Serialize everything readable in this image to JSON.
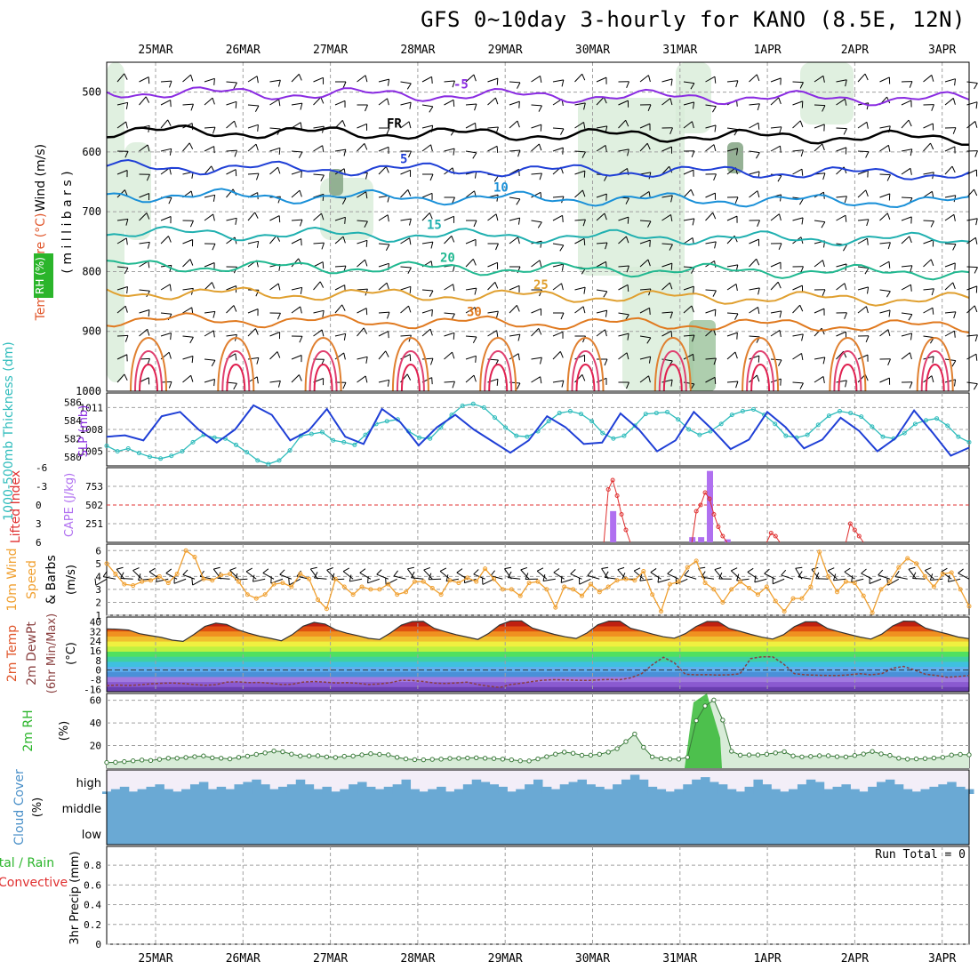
{
  "title": "GFS 0~10day 3-hourly for KANO (8.5E, 12N)",
  "dates": [
    "25MAR",
    "26MAR",
    "27MAR",
    "28MAR",
    "29MAR",
    "30MAR",
    "31MAR",
    "1APR",
    "2APR",
    "3APR"
  ],
  "colors": {
    "grid": "#a0a0a0",
    "purple": "#8a2be2",
    "blue": "#1f3fd6",
    "cyan": "#2fbcbc",
    "orange": "#f0a030",
    "green": "#2bb52b",
    "red": "#e03030",
    "cloud": "#6aa9d4",
    "rh_fill": "#d8ecd8"
  },
  "panels": {
    "upper": {
      "ylabel_parts": [
        "RH (%)",
        "Temperature (°C)",
        "Wind (m/s)"
      ],
      "ylabel2": "( m i l l i b a r s )",
      "ticks": [
        "500",
        "600",
        "700",
        "800",
        "900",
        "1000"
      ],
      "ylim": [
        1000,
        450
      ],
      "isotherms": [
        {
          "label": "-5",
          "color": "#8a2be2",
          "p": 500
        },
        {
          "label": "FR",
          "color": "#000000",
          "p": 565
        },
        {
          "label": "5",
          "color": "#1f3fd6",
          "p": 625
        },
        {
          "label": "10",
          "color": "#1a90d8",
          "p": 672
        },
        {
          "label": "15",
          "color": "#20b0b0",
          "p": 735
        },
        {
          "label": "20",
          "color": "#20b890",
          "p": 790
        },
        {
          "label": "25",
          "color": "#e0a030",
          "p": 835
        },
        {
          "label": "30",
          "color": "#e07a20",
          "p": 880
        }
      ],
      "contour_labels": [
        "-5",
        "FR",
        "5",
        "10",
        "15",
        "20",
        "25",
        "30",
        "-5",
        "FR",
        "5",
        "10",
        "20",
        "25",
        "1",
        "10",
        "10",
        "50",
        "50",
        "30",
        "1"
      ]
    },
    "thickness": {
      "ylabel": "1000-500mb Thickness (dm)",
      "ylabel2": "SLP (mb)",
      "left_ticks": [
        "586",
        "584",
        "582",
        "580"
      ],
      "right_ticks": [
        "1011",
        "1008",
        "1005"
      ],
      "thickness_dm": [
        581.2,
        580.6,
        580.9,
        580.4,
        580.0,
        579.8,
        580.1,
        580.6,
        581.6,
        582.4,
        582.1,
        582.0,
        581.3,
        580.5,
        579.6,
        579.2,
        579.6,
        580.7,
        582.3,
        582.5,
        582.7,
        581.8,
        581.6,
        581.3,
        582.4,
        583.6,
        583.9,
        584.1,
        582.8,
        582.1,
        582.0,
        583.2,
        584.6,
        585.6,
        585.8,
        585.4,
        584.3,
        583.2,
        582.3,
        582.2,
        582.8,
        583.9,
        584.8,
        585.0,
        584.7,
        583.9,
        582.6,
        582.0,
        582.3,
        583.4,
        584.7,
        584.8,
        584.9,
        584.1,
        583.0,
        582.4,
        582.8,
        583.6,
        584.6,
        585.0,
        585.2,
        584.6,
        583.6,
        582.3,
        582.1,
        582.4,
        583.5,
        584.5,
        585.0,
        584.8,
        584.4,
        583.3,
        582.2,
        582.0,
        582.6,
        583.6,
        584.0,
        584.2,
        583.4,
        582.2,
        581.6
      ],
      "slp_mb": [
        1007.0,
        1007.2,
        1006.5,
        1009.8,
        1010.4,
        1008.0,
        1006.2,
        1008.0,
        1011.3,
        1010.0,
        1006.5,
        1007.8,
        1010.8,
        1007.0,
        1006.0,
        1010.8,
        1009.0,
        1005.8,
        1008.3,
        1010.0,
        1008.0,
        1006.4,
        1004.8,
        1006.5,
        1009.8,
        1008.3,
        1006.0,
        1006.2,
        1010.2,
        1008.0,
        1005.0,
        1006.5,
        1010.4,
        1008.0,
        1005.3,
        1006.6,
        1010.4,
        1008.3,
        1005.4,
        1006.6,
        1009.6,
        1007.8,
        1005.0,
        1006.8,
        1010.6,
        1007.6,
        1004.4,
        1005.5
      ],
      "ylim_left": [
        579,
        587
      ],
      "ylim_right": [
        1003,
        1013
      ]
    },
    "cape": {
      "ylabel": "Lifted Index",
      "ylabel2": "CAPE (J/kg)",
      "left_ticks": [
        "-6",
        "-3",
        "0",
        "3",
        "6"
      ],
      "right_ticks": [
        "753",
        "502",
        "251"
      ],
      "cape_bars": [
        {
          "t": 57.5,
          "v": 420
        },
        {
          "t": 66.5,
          "v": 70
        },
        {
          "t": 67.5,
          "v": 70
        },
        {
          "t": 68.5,
          "v": 960
        },
        {
          "t": 70.5,
          "v": 40
        }
      ],
      "li_points": [
        {
          "t": 56.5,
          "v": 6
        },
        {
          "t": 57.0,
          "v": -2.5
        },
        {
          "t": 57.5,
          "v": -4.0
        },
        {
          "t": 58.0,
          "v": -1.5
        },
        {
          "t": 58.5,
          "v": 1.5
        },
        {
          "t": 59.0,
          "v": 4.0
        },
        {
          "t": 59.5,
          "v": 6
        },
        {
          "t": 66.5,
          "v": 6
        },
        {
          "t": 67.0,
          "v": 1.0
        },
        {
          "t": 67.5,
          "v": 0.0
        },
        {
          "t": 68.0,
          "v": -2.0
        },
        {
          "t": 68.5,
          "v": -1.0
        },
        {
          "t": 69.0,
          "v": 1.5
        },
        {
          "t": 69.5,
          "v": 3.5
        },
        {
          "t": 70.0,
          "v": 5.0
        },
        {
          "t": 70.5,
          "v": 6
        },
        {
          "t": 75.0,
          "v": 6
        },
        {
          "t": 75.5,
          "v": 4.5
        },
        {
          "t": 76.0,
          "v": 5.0
        },
        {
          "t": 76.5,
          "v": 6
        },
        {
          "t": 84.0,
          "v": 6
        },
        {
          "t": 84.5,
          "v": 3.0
        },
        {
          "t": 85.0,
          "v": 4.0
        },
        {
          "t": 85.5,
          "v": 5.0
        },
        {
          "t": 86.0,
          "v": 6
        }
      ],
      "ylim_li": [
        6,
        -6
      ],
      "ylim_cape": [
        0,
        1004
      ]
    },
    "wind10": {
      "ylabel": "10m Wind",
      "ylabel2": "Speed",
      "ylabel3": "& Barbs",
      "unit": "(m/s)",
      "ticks": [
        "6",
        "5",
        "4",
        "3",
        "2",
        "1"
      ],
      "speed": [
        5.0,
        4.2,
        3.4,
        3.3,
        3.6,
        3.7,
        4.0,
        3.5,
        4.2,
        6.0,
        5.5,
        3.8,
        3.7,
        4.1,
        4.2,
        3.6,
        2.6,
        2.3,
        2.6,
        3.4,
        3.5,
        3.2,
        4.2,
        3.8,
        2.2,
        1.5,
        3.8,
        3.2,
        2.6,
        3.2,
        3.0,
        3.0,
        3.4,
        2.6,
        2.8,
        3.6,
        3.6,
        3.1,
        2.6,
        3.7,
        3.5,
        3.9,
        3.6,
        4.6,
        3.8,
        3.0,
        3.0,
        2.5,
        3.5,
        3.6,
        3.0,
        1.6,
        3.2,
        3.0,
        2.5,
        3.4,
        2.8,
        3.2,
        3.7,
        3.8,
        3.7,
        4.4,
        2.6,
        1.3,
        3.4,
        3.6,
        4.7,
        5.2,
        3.5,
        3.0,
        2.0,
        3.0,
        3.6,
        3.1,
        2.6,
        3.2,
        2.1,
        1.3,
        2.3,
        2.3,
        3.2,
        5.9,
        4.0,
        2.8,
        3.6,
        3.5,
        2.5,
        1.2,
        3.0,
        3.6,
        4.7,
        5.4,
        5.0,
        4.0,
        3.2,
        4.2,
        4.3,
        3.0,
        1.7
      ],
      "ylim": [
        1,
        6.5
      ]
    },
    "temp2m": {
      "ylabel": "2m Temp",
      "ylabel2": "2m DewPt",
      "ylabel3": "(6hr Min/Max)",
      "unit": "(°C)",
      "ticks": [
        "40",
        "32",
        "24",
        "16",
        "8",
        "0",
        "-8",
        "-16"
      ],
      "temp": [
        34.2,
        33.9,
        33.2,
        30.2,
        28.6,
        27.1,
        24.8,
        23.8,
        29.6,
        36.2,
        39.0,
        37.8,
        33.5,
        30.6,
        28.1,
        26.3,
        24.3,
        29.4,
        36.4,
        39.6,
        38.2,
        33.3,
        30.6,
        28.6,
        26.3,
        25.3,
        30.8,
        37.3,
        40.2,
        40.4,
        34.6,
        31.9,
        29.4,
        27.4,
        25.4,
        30.4,
        37.4,
        40.8,
        40.8,
        34.8,
        32.2,
        29.6,
        27.6,
        26.2,
        30.8,
        37.6,
        40.6,
        40.6,
        34.6,
        32.4,
        29.8,
        27.6,
        26.4,
        30.2,
        36.2,
        40.3,
        40.2,
        34.6,
        32.2,
        29.6,
        27.3,
        25.7,
        29.4,
        36.0,
        40.0,
        40.0,
        34.6,
        32.0,
        29.6,
        27.4,
        25.7,
        29.8,
        36.6,
        40.6,
        40.4,
        34.8,
        32.3,
        30.0,
        27.4,
        26.0
      ],
      "dewpt": [
        -13.0,
        -12.5,
        -12.8,
        -12.3,
        -11.5,
        -11.0,
        -10.8,
        -11.2,
        -12.0,
        -12.6,
        -12.2,
        -10.0,
        -9.8,
        -10.5,
        -10.3,
        -11.0,
        -12.0,
        -11.8,
        -10.0,
        -9.5,
        -10.0,
        -10.8,
        -10.5,
        -11.0,
        -12.0,
        -11.5,
        -10.5,
        -8.5,
        -8.7,
        -9.5,
        -10.8,
        -11.2,
        -10.8,
        -10.0,
        -12.0,
        -13.4,
        -14.5,
        -12.0,
        -11.0,
        -9.5,
        -8.4,
        -8.0,
        -8.2,
        -8.5,
        -8.6,
        -8.2,
        -7.8,
        -8.0,
        -6.5,
        -3.0,
        4.5,
        10.6,
        6.0,
        -3.5,
        -4.0,
        -3.8,
        -4.2,
        -4.0,
        -3.2,
        9.5,
        11.0,
        11.0,
        5.0,
        -3.0,
        -4.0,
        -4.3,
        -4.5,
        -4.6,
        -4.0,
        -3.0,
        -4.0,
        -3.0,
        1.5,
        3.0,
        0.0,
        -3.5,
        -4.5,
        -6.0,
        -5.4,
        -4.5
      ],
      "ylim": [
        -18,
        44
      ]
    },
    "rh2m": {
      "ylabel": "2m RH",
      "unit": "(%)",
      "ticks": [
        "60",
        "40",
        "20"
      ],
      "rh": [
        5.0,
        5.2,
        5.8,
        6.5,
        7.2,
        6.8,
        7.8,
        8.8,
        8.8,
        9.5,
        10.2,
        10.8,
        9.2,
        8.8,
        8.2,
        9.6,
        10.6,
        12.2,
        13.5,
        15.2,
        14.5,
        12.4,
        10.8,
        10.8,
        11.0,
        10.0,
        9.5,
        10.5,
        10.7,
        11.8,
        12.8,
        12.2,
        11.8,
        9.6,
        8.2,
        7.5,
        7.4,
        7.8,
        8.0,
        8.6,
        8.7,
        9.0,
        9.2,
        8.8,
        8.5,
        8.0,
        7.4,
        6.5,
        6.4,
        8.2,
        10.2,
        12.4,
        14.2,
        13.2,
        11.4,
        11.5,
        12.3,
        14.2,
        17.2,
        23.5,
        30.2,
        18.5,
        10.0,
        8.4,
        8.0,
        8.0,
        9.6,
        42.0,
        55.0,
        60.2,
        42.5,
        15.0,
        11.5,
        11.7,
        11.7,
        12.3,
        13.5,
        14.6,
        10.8,
        10.0,
        10.4,
        11.0,
        11.0,
        10.2,
        10.0,
        11.2,
        12.5,
        14.8,
        12.6,
        11.3,
        8.8,
        8.0,
        8.2,
        8.5,
        9.0,
        9.6,
        11.6,
        12.2,
        11.8
      ],
      "ylim": [
        0,
        66
      ]
    },
    "cloud": {
      "ylabel": "Cloud Cover",
      "unit": "(%)",
      "levels": [
        "high",
        "middle",
        "low"
      ],
      "high_pct": [
        10,
        20,
        30,
        10,
        20,
        30,
        40,
        20,
        10,
        20,
        40,
        50,
        20,
        30,
        20,
        40,
        50,
        60,
        40,
        20,
        30,
        40,
        60,
        40,
        20,
        30,
        10,
        20,
        40,
        50,
        30,
        20,
        30,
        40,
        60,
        20,
        10,
        20,
        30,
        10,
        20,
        40,
        60,
        50,
        40,
        30,
        10,
        20,
        40,
        60,
        30,
        20,
        40,
        50,
        60,
        40,
        30,
        20,
        40,
        60,
        80,
        60,
        30,
        20,
        10,
        20,
        40,
        60,
        70,
        50,
        40,
        20,
        10,
        30,
        60,
        40,
        20,
        10,
        20,
        40,
        60,
        50,
        20,
        30,
        40,
        20,
        10,
        30,
        50,
        60,
        40,
        20,
        10,
        20,
        30,
        40,
        50,
        30,
        20
      ]
    },
    "precip": {
      "ylabel": "Total / Rain",
      "ylabel_red": "Convective",
      "ylabel2": "3hr Precip (mm)",
      "ticks": [
        "0.8",
        "0.6",
        "0.4",
        "0.2",
        "0"
      ],
      "note": "Run Total = 0",
      "ylim": [
        0,
        0.9
      ]
    }
  }
}
